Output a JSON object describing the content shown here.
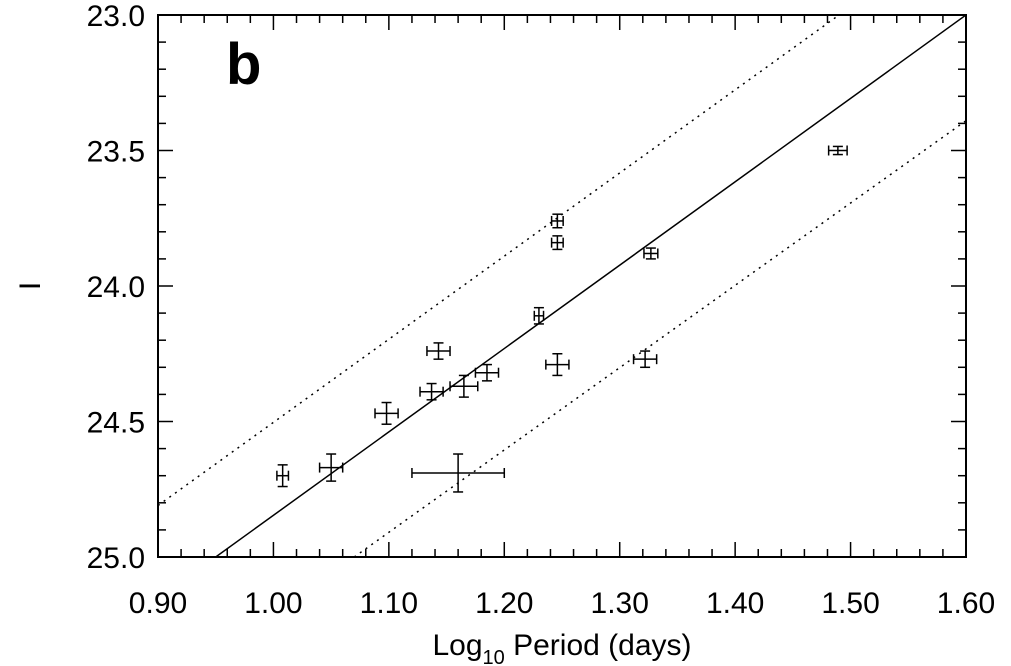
{
  "chart_data": {
    "type": "scatter",
    "panel_label": "b",
    "xlabel_main": "Log",
    "xlabel_sub": "10",
    "xlabel_rest": " Period (days)",
    "ylabel": "I",
    "xlim": [
      0.9,
      1.6
    ],
    "ylim": [
      25.0,
      23.0
    ],
    "y_inverted": true,
    "xticks": [
      "0.90",
      "1.00",
      "1.10",
      "1.20",
      "1.30",
      "1.40",
      "1.50",
      "1.60"
    ],
    "yticks": [
      "23.0",
      "23.5",
      "24.0",
      "24.5",
      "25.0"
    ],
    "fit_line": {
      "x": [
        0.95,
        1.6
      ],
      "y": [
        25.0,
        23.0
      ]
    },
    "upper_bound_line": {
      "x": [
        0.9,
        1.49
      ],
      "y": [
        24.81,
        23.0
      ]
    },
    "lower_bound_line": {
      "x": [
        1.07,
        1.6
      ],
      "y": [
        25.0,
        23.39
      ]
    },
    "points": [
      {
        "x": 1.008,
        "y": 24.7,
        "xerr": 0.005,
        "yerr": 0.04
      },
      {
        "x": 1.05,
        "y": 24.67,
        "xerr": 0.01,
        "yerr": 0.05
      },
      {
        "x": 1.098,
        "y": 24.47,
        "xerr": 0.01,
        "yerr": 0.04
      },
      {
        "x": 1.137,
        "y": 24.39,
        "xerr": 0.01,
        "yerr": 0.03
      },
      {
        "x": 1.143,
        "y": 24.24,
        "xerr": 0.01,
        "yerr": 0.03
      },
      {
        "x": 1.16,
        "y": 24.69,
        "xerr": 0.04,
        "yerr": 0.07
      },
      {
        "x": 1.165,
        "y": 24.37,
        "xerr": 0.012,
        "yerr": 0.04
      },
      {
        "x": 1.185,
        "y": 24.32,
        "xerr": 0.01,
        "yerr": 0.03
      },
      {
        "x": 1.23,
        "y": 24.11,
        "xerr": 0.004,
        "yerr": 0.03
      },
      {
        "x": 1.246,
        "y": 23.76,
        "xerr": 0.005,
        "yerr": 0.025
      },
      {
        "x": 1.246,
        "y": 23.84,
        "xerr": 0.005,
        "yerr": 0.025
      },
      {
        "x": 1.246,
        "y": 24.29,
        "xerr": 0.01,
        "yerr": 0.04
      },
      {
        "x": 1.322,
        "y": 24.27,
        "xerr": 0.01,
        "yerr": 0.03
      },
      {
        "x": 1.327,
        "y": 23.88,
        "xerr": 0.006,
        "yerr": 0.02
      },
      {
        "x": 1.489,
        "y": 23.5,
        "xerr": 0.008,
        "yerr": 0.015
      }
    ]
  }
}
